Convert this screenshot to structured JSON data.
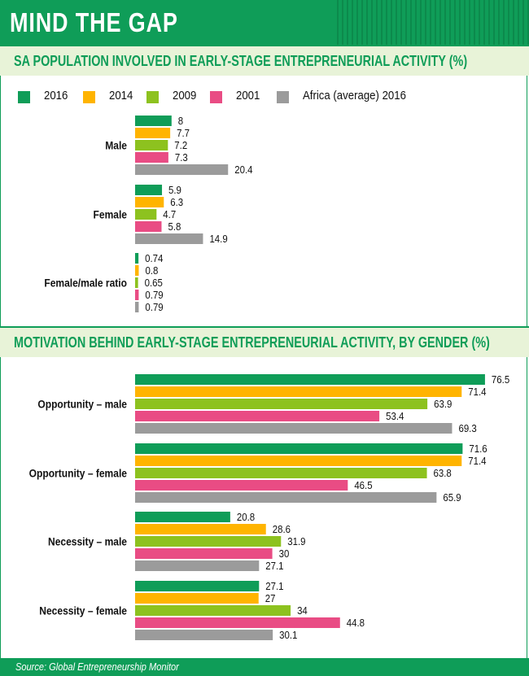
{
  "title": "MIND THE GAP",
  "source": "Source: Global Entrepreneurship Monitor",
  "colors": {
    "green_dark": "#0f9d58",
    "orange": "#ffb400",
    "lime": "#8dc21f",
    "pink": "#e94c84",
    "gray": "#9b9b9b",
    "section_bg": "#e8f3d8"
  },
  "legend": [
    {
      "label": "2016",
      "color": "#0f9d58"
    },
    {
      "label": "2014",
      "color": "#ffb400"
    },
    {
      "label": "2009",
      "color": "#8dc21f"
    },
    {
      "label": "2001",
      "color": "#e94c84"
    },
    {
      "label": "Africa (average) 2016",
      "color": "#9b9b9b"
    }
  ],
  "chart_data": [
    {
      "type": "bar",
      "orientation": "horizontal",
      "title": "SA POPULATION INVOLVED IN EARLY-STAGE ENTREPRENEURIAL ACTIVITY (%)",
      "categories": [
        "Male",
        "Female",
        "Female/male ratio"
      ],
      "series": [
        {
          "name": "2016",
          "values": [
            8,
            5.9,
            0.74
          ]
        },
        {
          "name": "2014",
          "values": [
            7.7,
            6.3,
            0.8
          ]
        },
        {
          "name": "2009",
          "values": [
            7.2,
            4.7,
            0.65
          ]
        },
        {
          "name": "2001",
          "values": [
            7.3,
            5.8,
            0.79
          ]
        },
        {
          "name": "Africa (average) 2016",
          "values": [
            20.4,
            14.9,
            0.79
          ]
        }
      ],
      "value_labels": [
        [
          "8",
          "5.9",
          "0.74"
        ],
        [
          "7.7",
          "6.3",
          "0.8"
        ],
        [
          "7.2",
          "4.7",
          "0.65"
        ],
        [
          "7.3",
          "5.8",
          "0.79"
        ],
        [
          "20.4",
          "14.9",
          "0.79"
        ]
      ]
    },
    {
      "type": "bar",
      "orientation": "horizontal",
      "title": "MOTIVATION BEHIND EARLY-STAGE ENTREPRENEURIAL ACTIVITY, BY GENDER (%)",
      "categories": [
        "Opportunity – male",
        "Opportunity – female",
        "Necessity – male",
        "Necessity – female"
      ],
      "series": [
        {
          "name": "2016",
          "values": [
            76.5,
            71.6,
            20.8,
            27.1
          ]
        },
        {
          "name": "2014",
          "values": [
            71.4,
            71.4,
            28.6,
            27
          ]
        },
        {
          "name": "2009",
          "values": [
            63.9,
            63.8,
            31.9,
            34
          ]
        },
        {
          "name": "2001",
          "values": [
            53.4,
            46.5,
            30,
            44.8
          ]
        },
        {
          "name": "Africa (average) 2016",
          "values": [
            69.3,
            65.9,
            27.1,
            30.1
          ]
        }
      ],
      "value_labels": [
        [
          "76.5",
          "71.6",
          "20.8",
          "27.1"
        ],
        [
          "71.4",
          "71.4",
          "28.6",
          "27"
        ],
        [
          "63.9",
          "63.8",
          "31.9",
          "34"
        ],
        [
          "53.4",
          "46.5",
          "30",
          "44.8"
        ],
        [
          "69.3",
          "65.9",
          "27.1",
          "30.1"
        ]
      ]
    }
  ]
}
